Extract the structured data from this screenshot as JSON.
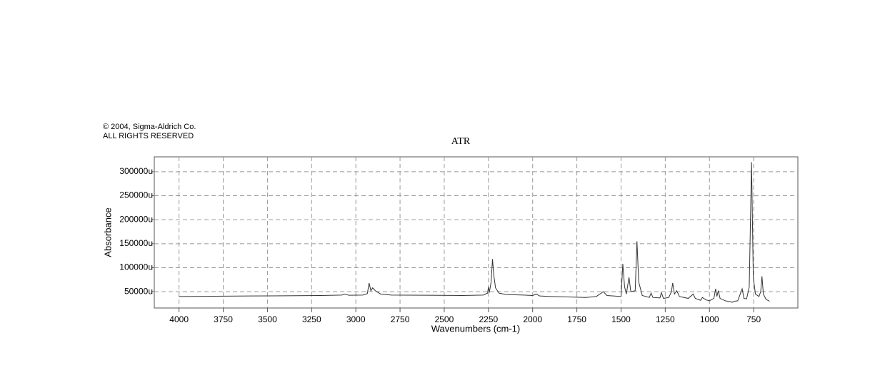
{
  "chart_data": {
    "type": "line",
    "title": "ATR",
    "copyright": "© 2004, Sigma-Aldrich Co.",
    "rights": "ALL RIGHTS RESERVED",
    "xlabel": "Wavenumbers (cm-1)",
    "ylabel": "Absorbance",
    "xlim": [
      4140,
      500
    ],
    "ylim": [
      16000,
      331000
    ],
    "xticks": [
      4000,
      3750,
      3500,
      3250,
      3000,
      2750,
      2500,
      2250,
      2000,
      1750,
      1500,
      1250,
      1000,
      750
    ],
    "yticks": [
      {
        "value": 50000,
        "label": "50000u"
      },
      {
        "value": 100000,
        "label": "100000u"
      },
      {
        "value": 150000,
        "label": "150000u"
      },
      {
        "value": 200000,
        "label": "200000u"
      },
      {
        "value": 250000,
        "label": "250000u"
      },
      {
        "value": 300000,
        "label": "300000u"
      }
    ],
    "grid": true,
    "series": [
      {
        "color": "#333333",
        "x": [
          4000,
          3800,
          3600,
          3400,
          3200,
          3080,
          3060,
          3040,
          2960,
          2935,
          2925,
          2915,
          2905,
          2890,
          2860,
          2800,
          2600,
          2400,
          2280,
          2255,
          2250,
          2245,
          2235,
          2227,
          2220,
          2210,
          2190,
          2150,
          2050,
          2000,
          1980,
          1960,
          1900,
          1800,
          1700,
          1640,
          1600,
          1580,
          1500,
          1490,
          1480,
          1470,
          1455,
          1445,
          1420,
          1410,
          1400,
          1380,
          1340,
          1330,
          1320,
          1280,
          1272,
          1260,
          1230,
          1215,
          1208,
          1198,
          1185,
          1170,
          1120,
          1092,
          1080,
          1050,
          1040,
          1020,
          1000,
          975,
          965,
          958,
          950,
          940,
          910,
          870,
          860,
          840,
          815,
          805,
          790,
          775,
          762,
          752,
          740,
          720,
          710,
          703,
          695,
          680,
          660
        ],
        "values": [
          40000,
          40500,
          41000,
          41500,
          42000,
          43000,
          45000,
          42500,
          43000,
          46000,
          68000,
          52000,
          58000,
          52000,
          45000,
          43000,
          42500,
          42000,
          43000,
          47000,
          60000,
          48000,
          70000,
          118000,
          85000,
          58000,
          47000,
          44000,
          43000,
          42000,
          45000,
          41000,
          40000,
          39000,
          38000,
          40000,
          50000,
          42000,
          40000,
          108000,
          60000,
          45000,
          80000,
          50000,
          52000,
          155000,
          70000,
          42000,
          38000,
          47000,
          38000,
          37000,
          48000,
          36000,
          38000,
          50000,
          68000,
          45000,
          52000,
          40000,
          36000,
          45000,
          36000,
          32000,
          38000,
          33000,
          31000,
          36000,
          56000,
          40000,
          52000,
          36000,
          31000,
          28000,
          30000,
          31000,
          56000,
          36000,
          35000,
          60000,
          320000,
          80000,
          45000,
          40000,
          50000,
          82000,
          45000,
          34000,
          30000
        ]
      }
    ]
  }
}
